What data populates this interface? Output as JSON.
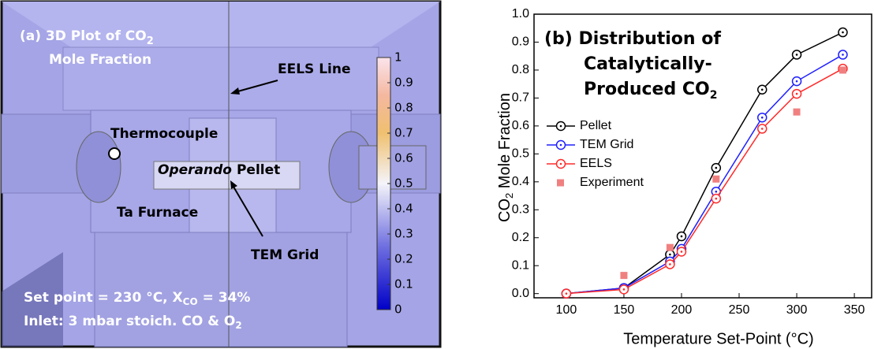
{
  "panel_a": {
    "title": [
      "(a) 3D Plot of CO",
      "2"
    ],
    "title_line2": "Mole Fraction",
    "labels": {
      "eels_line": "EELS Line",
      "thermocouple": "Thermocouple",
      "operando": "Operando",
      "pellet": "Pellet",
      "ta_furnace": "Ta Furnace",
      "tem_grid": "TEM Grid"
    },
    "set_point": [
      "Set point = 230 °C, X",
      "CO",
      " = 34%"
    ],
    "inlet": [
      "Inlet: 3 mbar stoich. CO & O",
      "2"
    ],
    "colorbar": {
      "lim": [
        0,
        1
      ],
      "ticks": [
        0,
        0.1,
        0.2,
        0.3,
        0.4,
        0.5,
        0.6,
        0.7,
        0.8,
        0.9,
        1
      ]
    }
  },
  "chart_data": {
    "type": "line",
    "title": [
      "(b) Distribution of",
      "Catalytically-",
      "Produced CO",
      "2"
    ],
    "x_label": "Temperature Set-Point (°C)",
    "y_label": [
      "CO",
      "2",
      " Mole Fraction"
    ],
    "x": [
      100,
      150,
      190,
      200,
      230,
      270,
      300,
      340
    ],
    "series": [
      {
        "name": "Pellet",
        "color": "#000000",
        "values": [
          0,
          0.02,
          0.14,
          0.205,
          0.45,
          0.73,
          0.855,
          0.935
        ]
      },
      {
        "name": "TEM Grid",
        "color": "#1f1fff",
        "values": [
          0,
          0.02,
          0.115,
          0.16,
          0.365,
          0.63,
          0.76,
          0.855
        ]
      },
      {
        "name": "EELS",
        "color": "#ff2a2a",
        "values": [
          0,
          0.015,
          0.105,
          0.15,
          0.34,
          0.59,
          0.715,
          0.805
        ]
      },
      {
        "name": "Experiment",
        "color": "#f08080",
        "type": "scatter",
        "x": [
          150,
          190,
          230,
          300,
          340
        ],
        "values": [
          0.065,
          0.165,
          0.41,
          0.65,
          0.8
        ]
      }
    ],
    "xlim": [
      72,
      365
    ],
    "ylim": [
      -0.015,
      1.0
    ],
    "xticks": [
      100,
      150,
      200,
      250,
      300,
      350
    ],
    "yticks": [
      {
        "value": 0,
        "label": "0.0"
      },
      0.1,
      0.2,
      0.3,
      0.4,
      0.5,
      0.6,
      0.7,
      0.8,
      0.9,
      {
        "value": 1,
        "label": "1.0"
      }
    ]
  }
}
